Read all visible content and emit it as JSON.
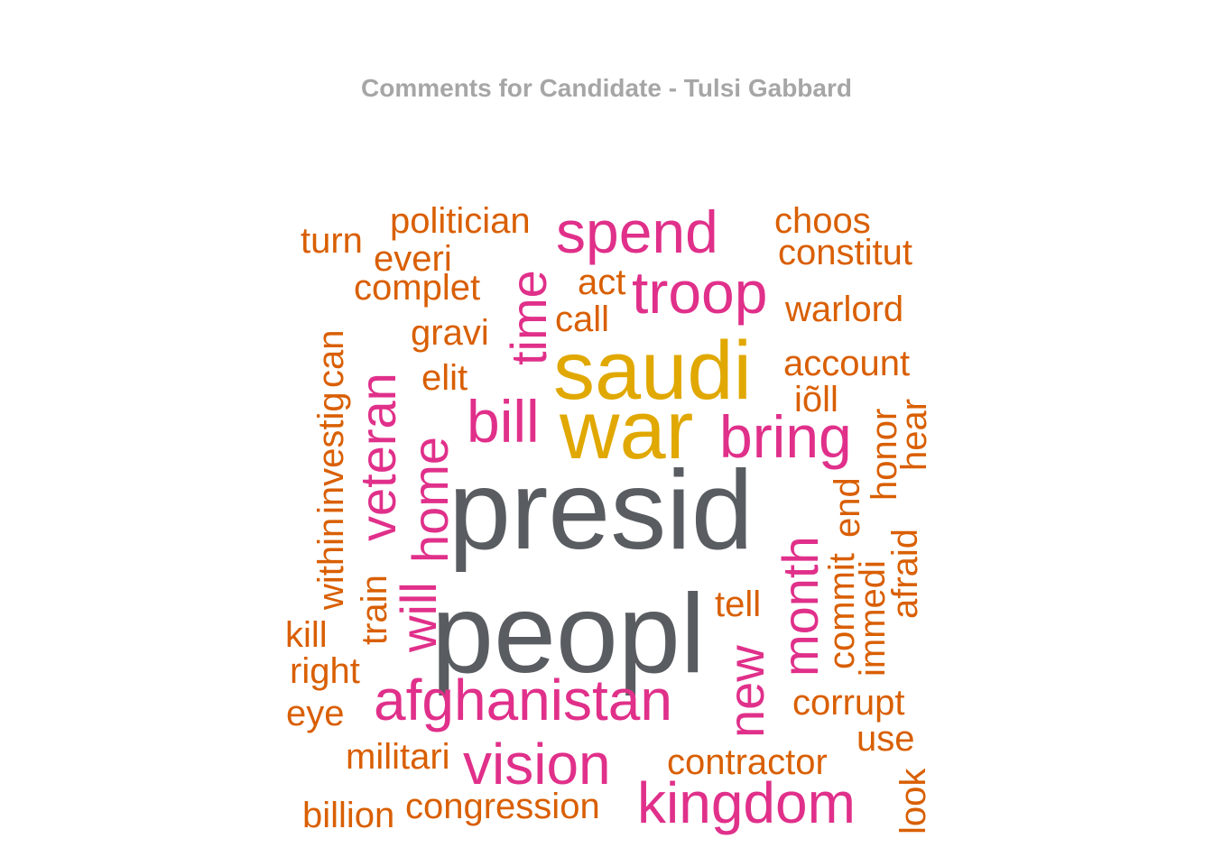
{
  "title": "Comments for Candidate - Tulsi Gabbard",
  "chart_data": {
    "type": "wordcloud",
    "title": "Comments for Candidate - Tulsi Gabbard",
    "colors": {
      "top": "#595d61",
      "high": "#e0a800",
      "mid": "#e0308a",
      "low": "#d95f02"
    },
    "words": [
      {
        "text": "presid",
        "freq": 10,
        "tier": "top"
      },
      {
        "text": "peopl",
        "freq": 10,
        "tier": "top"
      },
      {
        "text": "saudi",
        "freq": 8,
        "tier": "high"
      },
      {
        "text": "war",
        "freq": 8,
        "tier": "high"
      },
      {
        "text": "spend",
        "freq": 6,
        "tier": "mid"
      },
      {
        "text": "troop",
        "freq": 6,
        "tier": "mid"
      },
      {
        "text": "time",
        "freq": 5,
        "tier": "mid"
      },
      {
        "text": "bill",
        "freq": 5,
        "tier": "mid"
      },
      {
        "text": "bring",
        "freq": 6,
        "tier": "mid"
      },
      {
        "text": "veteran",
        "freq": 5,
        "tier": "mid"
      },
      {
        "text": "home",
        "freq": 5,
        "tier": "mid"
      },
      {
        "text": "will",
        "freq": 5,
        "tier": "mid"
      },
      {
        "text": "month",
        "freq": 5,
        "tier": "mid"
      },
      {
        "text": "new",
        "freq": 5,
        "tier": "mid"
      },
      {
        "text": "afghanistan",
        "freq": 6,
        "tier": "mid"
      },
      {
        "text": "vision",
        "freq": 6,
        "tier": "mid"
      },
      {
        "text": "kingdom",
        "freq": 6,
        "tier": "mid"
      },
      {
        "text": "politician",
        "freq": 3,
        "tier": "low"
      },
      {
        "text": "turn",
        "freq": 3,
        "tier": "low"
      },
      {
        "text": "everi",
        "freq": 3,
        "tier": "low"
      },
      {
        "text": "complet",
        "freq": 3,
        "tier": "low"
      },
      {
        "text": "act",
        "freq": 3,
        "tier": "low"
      },
      {
        "text": "call",
        "freq": 3,
        "tier": "low"
      },
      {
        "text": "gravi",
        "freq": 3,
        "tier": "low"
      },
      {
        "text": "elit",
        "freq": 3,
        "tier": "low"
      },
      {
        "text": "can",
        "freq": 3,
        "tier": "low"
      },
      {
        "text": "investig",
        "freq": 3,
        "tier": "low"
      },
      {
        "text": "within",
        "freq": 3,
        "tier": "low"
      },
      {
        "text": "train",
        "freq": 3,
        "tier": "low"
      },
      {
        "text": "kill",
        "freq": 3,
        "tier": "low"
      },
      {
        "text": "right",
        "freq": 3,
        "tier": "low"
      },
      {
        "text": "eye",
        "freq": 3,
        "tier": "low"
      },
      {
        "text": "militari",
        "freq": 3,
        "tier": "low"
      },
      {
        "text": "billion",
        "freq": 3,
        "tier": "low"
      },
      {
        "text": "congression",
        "freq": 3,
        "tier": "low"
      },
      {
        "text": "choos",
        "freq": 3,
        "tier": "low"
      },
      {
        "text": "constitut",
        "freq": 3,
        "tier": "low"
      },
      {
        "text": "warlord",
        "freq": 3,
        "tier": "low"
      },
      {
        "text": "account",
        "freq": 3,
        "tier": "low"
      },
      {
        "text": "iõll",
        "freq": 3,
        "tier": "low"
      },
      {
        "text": "honor",
        "freq": 3,
        "tier": "low"
      },
      {
        "text": "hear",
        "freq": 3,
        "tier": "low"
      },
      {
        "text": "end",
        "freq": 3,
        "tier": "low"
      },
      {
        "text": "commit",
        "freq": 3,
        "tier": "low"
      },
      {
        "text": "immedi",
        "freq": 3,
        "tier": "low"
      },
      {
        "text": "afraid",
        "freq": 3,
        "tier": "low"
      },
      {
        "text": "tell",
        "freq": 3,
        "tier": "low"
      },
      {
        "text": "corrupt",
        "freq": 3,
        "tier": "low"
      },
      {
        "text": "use",
        "freq": 3,
        "tier": "low"
      },
      {
        "text": "contractor",
        "freq": 3,
        "tier": "low"
      },
      {
        "text": "look",
        "freq": 3,
        "tier": "low"
      }
    ]
  }
}
